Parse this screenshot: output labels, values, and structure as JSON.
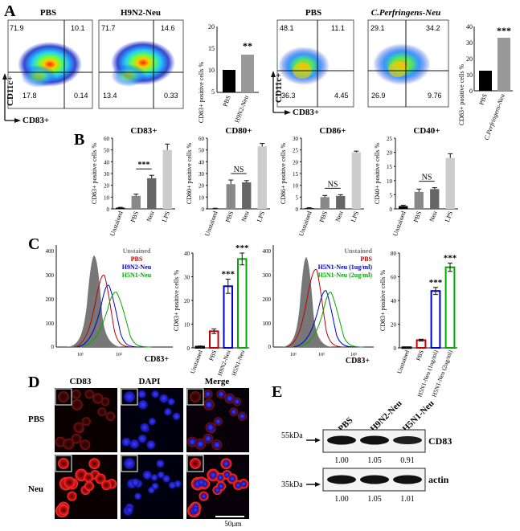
{
  "panels": {
    "A": "A",
    "B": "B",
    "C": "C",
    "D": "D",
    "E": "E"
  },
  "panel_a": {
    "flow_left": [
      {
        "title": "PBS",
        "q_ul": "71.9",
        "q_ur": "10.1",
        "q_ll": "17.8",
        "q_lr": "0.14"
      },
      {
        "title": "H9N2-Neu",
        "q_ul": "71.7",
        "q_ur": "14.6",
        "q_ll": "13.4",
        "q_lr": "0.33"
      }
    ],
    "flow_right": [
      {
        "title": "PBS",
        "q_ul": "48.1",
        "q_ur": "11.1",
        "q_ll": "36.3",
        "q_lr": "4.45"
      },
      {
        "title": "C.Perfringens-Neu",
        "q_ul": "29.1",
        "q_ur": "34.2",
        "q_ll": "26.9",
        "q_lr": "9.76"
      }
    ],
    "x_axis": "CD83+",
    "y_axis": "CD11c+",
    "ticks_left": [
      "20",
      "15",
      "10",
      "5"
    ],
    "ticks_right": [
      "40",
      "30",
      "20",
      "10",
      "0"
    ]
  },
  "chart_data": [
    {
      "type": "bar",
      "ylabel": "CD83+ positive cells %",
      "ylim": [
        5,
        20
      ],
      "categories": [
        "PBS",
        "H9N2-Neu"
      ],
      "values": [
        10.8,
        14.0
      ],
      "errors": [
        0.5,
        0.5
      ],
      "colors": [
        "#000000",
        "#999999"
      ],
      "significance": "**"
    },
    {
      "type": "bar",
      "ylabel": "CD83+ positive cells %",
      "ylim": [
        0,
        40
      ],
      "categories": [
        "PBS",
        "C.Perfringens-Neu"
      ],
      "values": [
        12.5,
        33.0
      ],
      "errors": [
        0.8,
        1.2
      ],
      "colors": [
        "#000000",
        "#999999"
      ],
      "significance": "***"
    },
    {
      "type": "bar",
      "title": "CD83+",
      "ylabel": "CD83+ positive cells %",
      "ylim": [
        0,
        60
      ],
      "yticks": [
        "0",
        "10",
        "20",
        "30",
        "40",
        "50",
        "60"
      ],
      "categories": [
        "Unstained",
        "PBS",
        "Neu",
        "LPS"
      ],
      "values": [
        1.0,
        11.0,
        26.0,
        50.0
      ],
      "errors": [
        0.3,
        1.5,
        2.5,
        5.0
      ],
      "colors": [
        "#000000",
        "#888888",
        "#666666",
        "#cccccc"
      ],
      "comparisons": [
        {
          "from": "PBS",
          "to": "Neu",
          "label": "***"
        }
      ]
    },
    {
      "type": "bar",
      "title": "CD80+",
      "ylabel": "CD80+ positive cells %",
      "ylim": [
        0,
        60
      ],
      "yticks": [
        "0",
        "10",
        "20",
        "30",
        "40",
        "50",
        "60"
      ],
      "categories": [
        "Unstained",
        "PBS",
        "Neu",
        "LPS"
      ],
      "values": [
        0.3,
        21.0,
        22.5,
        53.0
      ],
      "errors": [
        0.2,
        3.5,
        1.5,
        2.5
      ],
      "colors": [
        "#000000",
        "#888888",
        "#666666",
        "#cccccc"
      ],
      "comparisons": [
        {
          "from": "PBS",
          "to": "Neu",
          "label": "NS"
        }
      ]
    },
    {
      "type": "bar",
      "title": "CD86+",
      "ylabel": "CD86+ positive cells %",
      "ylim": [
        0,
        30
      ],
      "yticks": [
        "0",
        "5",
        "10",
        "15",
        "20",
        "25",
        "30"
      ],
      "categories": [
        "Unstained",
        "PBS",
        "Neu",
        "LPS"
      ],
      "values": [
        0.3,
        5.0,
        5.5,
        24.0
      ],
      "errors": [
        0.2,
        0.7,
        0.5,
        0.5
      ],
      "colors": [
        "#000000",
        "#888888",
        "#666666",
        "#cccccc"
      ],
      "comparisons": [
        {
          "from": "PBS",
          "to": "Neu",
          "label": "NS"
        }
      ]
    },
    {
      "type": "bar",
      "title": "CD40+",
      "ylabel": "CD40+ positive cells %",
      "ylim": [
        0,
        25
      ],
      "yticks": [
        "0",
        "5",
        "10",
        "15",
        "20",
        "25"
      ],
      "categories": [
        "Unstained",
        "PBS",
        "Neu",
        "LPS"
      ],
      "values": [
        1.0,
        6.0,
        7.0,
        18.0
      ],
      "errors": [
        0.3,
        1.0,
        0.5,
        1.5
      ],
      "colors": [
        "#000000",
        "#888888",
        "#666666",
        "#cccccc"
      ],
      "comparisons": [
        {
          "from": "PBS",
          "to": "Neu",
          "label": "NS"
        }
      ]
    },
    {
      "type": "bar",
      "ylabel": "CD83+ positive cells %",
      "ylim": [
        0,
        40
      ],
      "yticks": [
        "0",
        "10",
        "20",
        "30",
        "40"
      ],
      "categories": [
        "Unstained",
        "PBS",
        "H9N2-Neu",
        "H5N1-Neu"
      ],
      "values": [
        0.5,
        7.0,
        26.0,
        37.5
      ],
      "errors": [
        0.3,
        1.0,
        3.0,
        2.5
      ],
      "colors": [
        "#000000",
        "#c00000",
        "#0000cc",
        "#00aa00"
      ],
      "significance": [
        "",
        "",
        "***",
        "***"
      ]
    },
    {
      "type": "bar",
      "ylabel": "CD83+ positive cells %",
      "ylim": [
        0,
        80
      ],
      "yticks": [
        "0",
        "20",
        "40",
        "60",
        "80"
      ],
      "categories": [
        "Unstained",
        "PBS",
        "H5N1-Neu (1ug/ml)",
        "H5N1-Neu (2ug/ml)"
      ],
      "values": [
        0.5,
        6.5,
        48.0,
        68.0
      ],
      "errors": [
        0.3,
        0.8,
        3.0,
        3.5
      ],
      "colors": [
        "#000000",
        "#c00000",
        "#0000cc",
        "#00aa00"
      ],
      "significance": [
        "",
        "",
        "***",
        "***"
      ]
    }
  ],
  "panel_c": {
    "hist1": {
      "legend": [
        "Unstained",
        "PBS",
        "H9N2-Neu",
        "H5N1-Neu"
      ],
      "legend_colors": [
        "#777777",
        "#c00000",
        "#0000cc",
        "#00aa00"
      ],
      "yticks": [
        "400",
        "300",
        "200",
        "100",
        "0"
      ]
    },
    "hist2": {
      "legend": [
        "Unstained",
        "PBS",
        "H5N1-Neu (1ug/ml)",
        "H5N1-Neu (2ug/ml)"
      ],
      "legend_colors": [
        "#777777",
        "#c00000",
        "#0000cc",
        "#00aa00"
      ],
      "yticks": [
        "400",
        "300",
        "200",
        "100",
        "0"
      ]
    },
    "xlabel": "CD83+",
    "xticks": [
      "10¹",
      "10²",
      "10³"
    ]
  },
  "panel_d": {
    "columns": [
      "CD83",
      "DAPI",
      "Merge"
    ],
    "rows": [
      "PBS",
      "Neu"
    ],
    "scale_bar": "50µm"
  },
  "panel_e": {
    "lanes": [
      "PBS",
      "H9N2-Neu",
      "H5N1-Neu"
    ],
    "blots": [
      {
        "marker": "55kDa",
        "label": "CD83",
        "values": [
          "1.00",
          "1.05",
          "0.91"
        ]
      },
      {
        "marker": "35kDa",
        "label": "actin",
        "values": [
          "1.00",
          "1.05",
          "1.01"
        ]
      }
    ]
  }
}
